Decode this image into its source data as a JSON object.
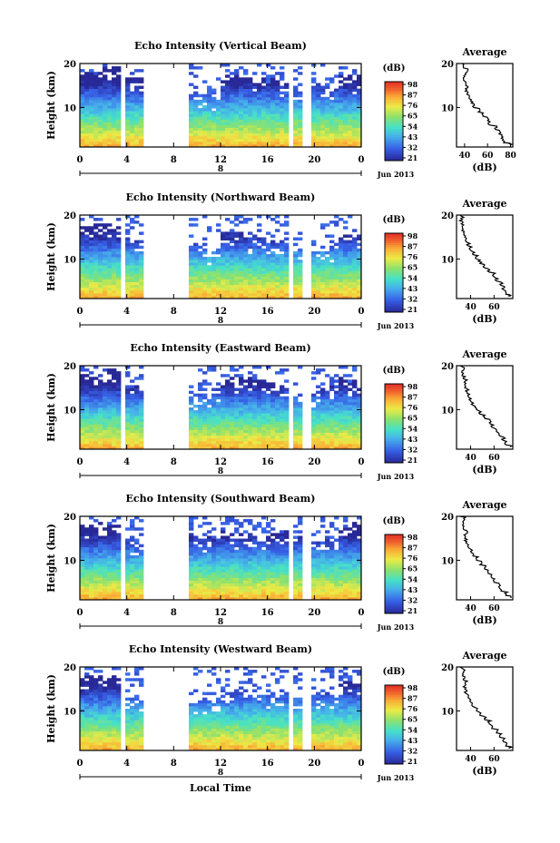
{
  "chart_data": [
    {
      "type": "heatmap",
      "title": "Echo Intensity (Vertical Beam)",
      "ylabel": "Height (km)",
      "xlabel": "",
      "x_ticks": [
        "0",
        "4",
        "8",
        "12",
        "16",
        "20",
        "0"
      ],
      "y_ticks": [
        "20",
        "10"
      ],
      "ylim": [
        1,
        20
      ],
      "xlim": [
        0,
        24
      ],
      "date_marker": "8",
      "date_label": "Jun 2013",
      "colorbar": {
        "label": "(dB)",
        "ticks": [
          "98",
          "87",
          "76",
          "65",
          "54",
          "43",
          "32",
          "21"
        ]
      },
      "data_gaps_hours": [
        [
          1.5,
          1.6
        ],
        [
          3.5,
          4.0
        ],
        [
          5.4,
          9.3
        ],
        [
          17.8,
          18.3
        ],
        [
          19.0,
          19.6
        ]
      ],
      "cloud_top_km": [
        18,
        19,
        17,
        13,
        14,
        13,
        17,
        17,
        16,
        15,
        15,
        17
      ],
      "average": {
        "title": "Average",
        "xlabel": "(dB)",
        "x_ticks": [
          "40",
          "60",
          "80"
        ],
        "xlim": [
          33,
          82
        ],
        "y_ticks": [
          "20",
          "10"
        ],
        "profile": [
          [
            80,
            1.5
          ],
          [
            74,
            2
          ],
          [
            72,
            3
          ],
          [
            70,
            4
          ],
          [
            67,
            5
          ],
          [
            62,
            6
          ],
          [
            60,
            7
          ],
          [
            56,
            8
          ],
          [
            52,
            9
          ],
          [
            48,
            10
          ],
          [
            46,
            11
          ],
          [
            44,
            12
          ],
          [
            42,
            13
          ],
          [
            42,
            14
          ],
          [
            41,
            15
          ],
          [
            40,
            16
          ],
          [
            40,
            17
          ],
          [
            42,
            18
          ],
          [
            39,
            19
          ],
          [
            38,
            20
          ]
        ]
      }
    },
    {
      "type": "heatmap",
      "title": "Echo Intensity (Northward Beam)",
      "ylabel": "Height (km)",
      "xlabel": "",
      "x_ticks": [
        "0",
        "4",
        "8",
        "12",
        "16",
        "20",
        "0"
      ],
      "y_ticks": [
        "20",
        "10"
      ],
      "ylim": [
        1,
        20
      ],
      "xlim": [
        0,
        24
      ],
      "date_marker": "8",
      "date_label": "Jun 2013",
      "colorbar": {
        "label": "(dB)",
        "ticks": [
          "98",
          "87",
          "76",
          "65",
          "54",
          "43",
          "32",
          "21"
        ]
      },
      "data_gaps_hours": [
        [
          1.5,
          1.6
        ],
        [
          3.5,
          4.0
        ],
        [
          5.4,
          9.3
        ],
        [
          17.8,
          18.3
        ],
        [
          19.0,
          19.6
        ]
      ],
      "cloud_top_km": [
        18,
        18,
        14,
        11,
        13,
        12,
        16,
        15,
        14,
        12,
        13,
        16
      ],
      "average": {
        "title": "Average",
        "xlabel": "(dB)",
        "x_ticks": [
          "40",
          "60"
        ],
        "xlim": [
          28,
          76
        ],
        "y_ticks": [
          "20",
          "10"
        ],
        "profile": [
          [
            74,
            1.5
          ],
          [
            70,
            2
          ],
          [
            68,
            3
          ],
          [
            66,
            4
          ],
          [
            62,
            5
          ],
          [
            60,
            6
          ],
          [
            56,
            7
          ],
          [
            52,
            8
          ],
          [
            48,
            9
          ],
          [
            45,
            10
          ],
          [
            42,
            11
          ],
          [
            40,
            12
          ],
          [
            38,
            13
          ],
          [
            36,
            14
          ],
          [
            35,
            15
          ],
          [
            34,
            16
          ],
          [
            33,
            17
          ],
          [
            32,
            18
          ],
          [
            33,
            19
          ],
          [
            31,
            20
          ]
        ]
      }
    },
    {
      "type": "heatmap",
      "title": "Echo Intensity (Eastward Beam)",
      "ylabel": "Height (km)",
      "xlabel": "",
      "x_ticks": [
        "0",
        "4",
        "8",
        "12",
        "16",
        "20",
        "0"
      ],
      "y_ticks": [
        "20",
        "10"
      ],
      "ylim": [
        1,
        20
      ],
      "xlim": [
        0,
        24
      ],
      "date_marker": "8",
      "date_label": "Jun 2013",
      "colorbar": {
        "label": "(dB)",
        "ticks": [
          "98",
          "87",
          "76",
          "65",
          "54",
          "43",
          "32",
          "21"
        ]
      },
      "data_gaps_hours": [
        [
          1.5,
          1.6
        ],
        [
          3.5,
          4.0
        ],
        [
          5.4,
          9.3
        ],
        [
          17.8,
          18.3
        ],
        [
          19.0,
          19.6
        ]
      ],
      "cloud_top_km": [
        18,
        19,
        15,
        12,
        13,
        14,
        17,
        17,
        16,
        14,
        15,
        17
      ],
      "average": {
        "title": "Average",
        "xlabel": "(dB)",
        "x_ticks": [
          "40",
          "60"
        ],
        "xlim": [
          28,
          76
        ],
        "y_ticks": [
          "20",
          "10"
        ],
        "profile": [
          [
            74,
            1.5
          ],
          [
            70,
            2
          ],
          [
            68,
            3
          ],
          [
            65,
            4
          ],
          [
            62,
            5
          ],
          [
            58,
            6
          ],
          [
            56,
            7
          ],
          [
            52,
            8
          ],
          [
            48,
            9
          ],
          [
            45,
            10
          ],
          [
            42,
            11
          ],
          [
            40,
            12
          ],
          [
            38,
            13
          ],
          [
            37,
            14
          ],
          [
            35,
            15
          ],
          [
            36,
            16
          ],
          [
            34,
            17
          ],
          [
            33,
            18
          ],
          [
            34,
            19
          ],
          [
            31,
            20
          ]
        ]
      }
    },
    {
      "type": "heatmap",
      "title": "Echo Intensity (Southward Beam)",
      "ylabel": "Height (km)",
      "xlabel": "",
      "x_ticks": [
        "0",
        "4",
        "8",
        "12",
        "16",
        "20",
        "0"
      ],
      "y_ticks": [
        "20",
        "10"
      ],
      "ylim": [
        1,
        20
      ],
      "xlim": [
        0,
        24
      ],
      "date_marker": "8",
      "date_label": "Jun 2013",
      "colorbar": {
        "label": "(dB)",
        "ticks": [
          "98",
          "87",
          "76",
          "65",
          "54",
          "43",
          "32",
          "21"
        ]
      },
      "data_gaps_hours": [
        [
          1.5,
          1.6
        ],
        [
          3.5,
          4.0
        ],
        [
          5.4,
          9.3
        ],
        [
          17.8,
          18.3
        ],
        [
          19.0,
          19.6
        ]
      ],
      "cloud_top_km": [
        18,
        18,
        14,
        12,
        17,
        15,
        16,
        16,
        17,
        15,
        14,
        18
      ],
      "average": {
        "title": "Average",
        "xlabel": "(dB)",
        "x_ticks": [
          "40",
          "60"
        ],
        "xlim": [
          28,
          76
        ],
        "y_ticks": [
          "20",
          "10"
        ],
        "profile": [
          [
            74,
            1.5
          ],
          [
            70,
            2
          ],
          [
            66,
            3
          ],
          [
            64,
            4
          ],
          [
            60,
            5
          ],
          [
            58,
            6
          ],
          [
            55,
            7
          ],
          [
            52,
            8
          ],
          [
            48,
            9
          ],
          [
            45,
            10
          ],
          [
            42,
            11
          ],
          [
            40,
            12
          ],
          [
            38,
            13
          ],
          [
            36,
            14
          ],
          [
            35,
            15
          ],
          [
            36,
            16
          ],
          [
            34,
            17
          ],
          [
            33,
            18
          ],
          [
            34,
            19
          ],
          [
            31,
            20
          ]
        ]
      }
    },
    {
      "type": "heatmap",
      "title": "Echo Intensity (Westward Beam)",
      "ylabel": "Height (km)",
      "xlabel": "Local Time",
      "x_ticks": [
        "0",
        "4",
        "8",
        "12",
        "16",
        "20",
        "0"
      ],
      "y_ticks": [
        "20",
        "10"
      ],
      "ylim": [
        1,
        20
      ],
      "xlim": [
        0,
        24
      ],
      "date_marker": "8",
      "date_label": "Jun 2013",
      "colorbar": {
        "label": "(dB)",
        "ticks": [
          "98",
          "87",
          "76",
          "65",
          "54",
          "43",
          "32",
          "21"
        ]
      },
      "data_gaps_hours": [
        [
          1.5,
          1.6
        ],
        [
          3.5,
          4.0
        ],
        [
          5.4,
          9.3
        ],
        [
          17.8,
          18.3
        ],
        [
          19.0,
          19.6
        ]
      ],
      "cloud_top_km": [
        18,
        18,
        13,
        11,
        12,
        12,
        15,
        14,
        13,
        13,
        14,
        17
      ],
      "average": {
        "title": "Average",
        "xlabel": "(dB)",
        "x_ticks": [
          "40",
          "60"
        ],
        "xlim": [
          28,
          76
        ],
        "y_ticks": [
          "20",
          "10"
        ],
        "profile": [
          [
            74,
            1.5
          ],
          [
            70,
            2
          ],
          [
            68,
            3
          ],
          [
            65,
            4
          ],
          [
            62,
            5
          ],
          [
            58,
            6
          ],
          [
            56,
            7
          ],
          [
            52,
            8
          ],
          [
            48,
            9
          ],
          [
            45,
            10
          ],
          [
            42,
            11
          ],
          [
            40,
            12
          ],
          [
            38,
            13
          ],
          [
            36,
            14
          ],
          [
            35,
            15
          ],
          [
            36,
            16
          ],
          [
            34,
            17
          ],
          [
            33,
            18
          ],
          [
            34,
            19
          ],
          [
            31,
            20
          ]
        ]
      }
    }
  ]
}
